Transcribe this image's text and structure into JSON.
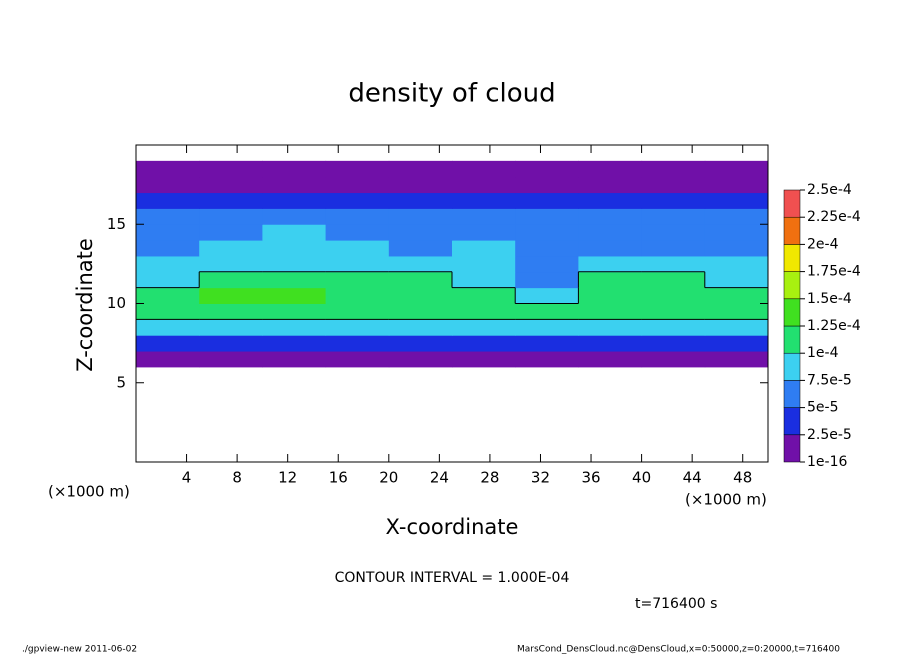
{
  "chart_data": {
    "type": "heatmap",
    "title": "density of cloud",
    "x_label": "X-coordinate",
    "y_label": "Z-coordinate",
    "x_unit": "(×1000 m)",
    "y_unit": "(×1000 m)",
    "contour_label": "CONTOUR INTERVAL = 1.000E-04",
    "contour_level": 0.0001,
    "time_label": "t=716400 s",
    "footer_left": "./gpview-new  2011-06-02",
    "footer_right": "MarsCond_DensCloud.nc@DensCloud,x=0:50000,z=0:20000,t=716400",
    "xlim": [
      0,
      50
    ],
    "ylim": [
      0,
      20
    ],
    "xticks": [
      4,
      8,
      12,
      16,
      20,
      24,
      28,
      32,
      36,
      40,
      44,
      48
    ],
    "yticks": [
      5,
      10,
      15
    ],
    "x": [
      2.5,
      7.5,
      12.5,
      17.5,
      22.5,
      27.5,
      32.5,
      37.5,
      42.5,
      47.5
    ],
    "y": [
      6.5,
      7.5,
      8.5,
      9.5,
      10.5,
      11.5,
      12.5,
      13.5,
      14.5,
      15.5,
      16.5,
      17.5,
      18.5
    ],
    "values": [
      [
        2e-05,
        2e-05,
        2e-05,
        2e-05,
        2e-05,
        2e-05,
        2e-05,
        2e-05,
        2e-05,
        2e-05
      ],
      [
        4e-05,
        4e-05,
        3.5e-05,
        4e-05,
        4e-05,
        3.5e-05,
        4e-05,
        3e-05,
        3.5e-05,
        4e-05
      ],
      [
        8.5e-05,
        9e-05,
        9e-05,
        8.5e-05,
        9e-05,
        8.5e-05,
        8e-05,
        8.5e-05,
        9e-05,
        8.5e-05
      ],
      [
        0.000115,
        0.00012,
        0.00012,
        0.000115,
        0.00012,
        0.00011,
        0.000105,
        0.00011,
        0.000115,
        0.00011
      ],
      [
        0.00012,
        0.00013,
        0.000125,
        0.00012,
        0.000115,
        0.000105,
        9e-05,
        0.00011,
        0.000115,
        0.00011
      ],
      [
        9e-05,
        0.00011,
        0.000115,
        0.000105,
        0.0001,
        9e-05,
        7e-05,
        0.000105,
        0.0001,
        9e-05
      ],
      [
        7.5e-05,
        8.5e-05,
        9e-05,
        8e-05,
        8e-05,
        8e-05,
        5e-05,
        8.5e-05,
        8e-05,
        7.5e-05
      ],
      [
        7e-05,
        8e-05,
        8e-05,
        7.5e-05,
        7e-05,
        7.5e-05,
        5.5e-05,
        7e-05,
        7e-05,
        7e-05
      ],
      [
        6e-05,
        7e-05,
        7.5e-05,
        6.5e-05,
        6e-05,
        7e-05,
        6.5e-05,
        6.5e-05,
        6e-05,
        6e-05
      ],
      [
        5e-05,
        5.5e-05,
        6e-05,
        5.5e-05,
        5e-05,
        6e-05,
        6e-05,
        5.5e-05,
        5e-05,
        5e-05
      ],
      [
        4e-05,
        4e-05,
        4e-05,
        4e-05,
        4e-05,
        4e-05,
        4e-05,
        4e-05,
        4e-05,
        4e-05
      ],
      [
        1.5e-05,
        1.5e-05,
        1.5e-05,
        1.5e-05,
        1.5e-05,
        1.5e-05,
        1.5e-05,
        1.5e-05,
        1.5e-05,
        1.5e-05
      ],
      [
        1e-05,
        1e-05,
        1e-05,
        1e-05,
        1e-05,
        1e-05,
        1e-05,
        1e-05,
        1e-05,
        1e-05
      ]
    ],
    "levels": [
      {
        "value": 1e-16,
        "label": "1e-16"
      },
      {
        "value": 2.5e-05,
        "label": "2.5e-5"
      },
      {
        "value": 5e-05,
        "label": "5e-5"
      },
      {
        "value": 7.5e-05,
        "label": "7.5e-5"
      },
      {
        "value": 0.0001,
        "label": "1e-4"
      },
      {
        "value": 0.000125,
        "label": "1.25e-4"
      },
      {
        "value": 0.00015,
        "label": "1.5e-4"
      },
      {
        "value": 0.000175,
        "label": "1.75e-4"
      },
      {
        "value": 0.0002,
        "label": "2e-4"
      },
      {
        "value": 0.000225,
        "label": "2.25e-4"
      },
      {
        "value": 0.00025,
        "label": "2.5e-4"
      }
    ],
    "colors": [
      "#7010a8",
      "#1a2ee0",
      "#2f7df2",
      "#3cd0f0",
      "#22e070",
      "#40e020",
      "#a8f010",
      "#f0e800",
      "#f07010",
      "#f05050"
    ]
  }
}
